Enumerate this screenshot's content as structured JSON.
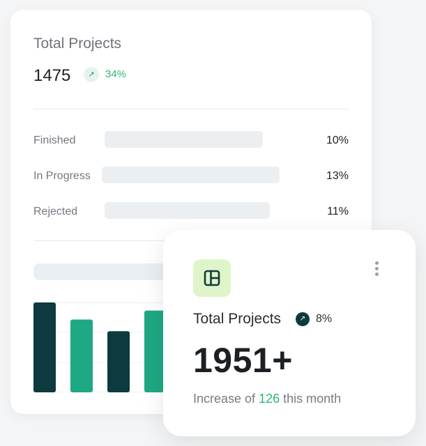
{
  "back_card": {
    "title": "Total Projects",
    "value": "1475",
    "trend_icon": "arrow-up-right-icon",
    "trend_percent": "34%",
    "rows": [
      {
        "label": "Finished",
        "value": "10%"
      },
      {
        "label": "In Progress",
        "value": "13%"
      },
      {
        "label": "Rejected",
        "value": "11%"
      }
    ]
  },
  "chart_data": {
    "type": "bar",
    "categories": [
      "",
      "",
      "",
      ""
    ],
    "values": [
      100,
      81,
      68,
      91
    ],
    "ylim": [
      0,
      100
    ],
    "grid": true,
    "colors": [
      "#0d3a3e",
      "#1ea883",
      "#0d3a3e",
      "#1ea883"
    ]
  },
  "front_card": {
    "icon": "layout-panel-icon",
    "menu_icon": "kebab-menu-icon",
    "title": "Total Projects",
    "trend_icon": "arrow-up-right-icon",
    "trend_percent": "8%",
    "value": "1951+",
    "subtitle_prefix": "Increase of",
    "subtitle_accent": "126",
    "subtitle_suffix": "this month"
  },
  "colors": {
    "accent_green": "#2bb673",
    "dark_teal": "#0d3a3e",
    "bar_teal": "#1ea883",
    "icon_bg": "#dff5c9"
  }
}
